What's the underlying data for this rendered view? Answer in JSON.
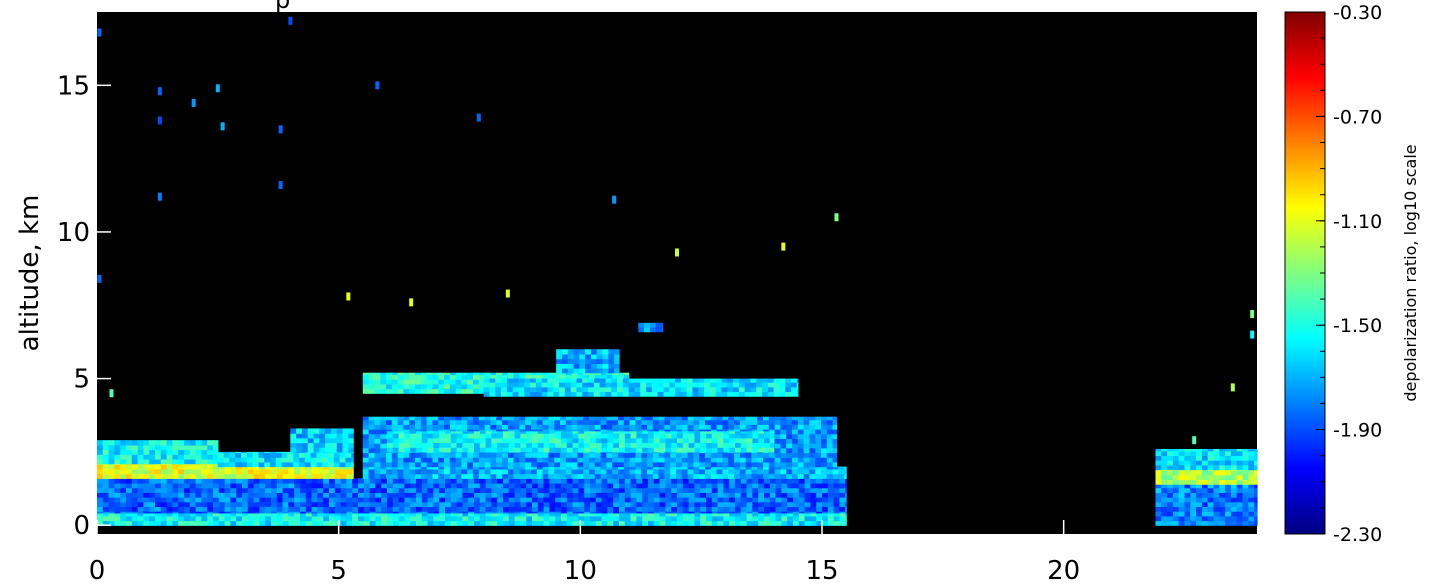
{
  "chart_data": {
    "type": "heatmap",
    "title": "p",
    "xlabel": "",
    "ylabel": "altitude, km",
    "xlim": [
      0,
      24
    ],
    "ylim": [
      -0.3,
      17.5
    ],
    "x_ticks": [
      "0",
      "5",
      "10",
      "15",
      "20"
    ],
    "y_ticks": [
      "0",
      "5",
      "10",
      "15"
    ],
    "background": "#000000",
    "colorbar": {
      "label": "depolarization ratio, log10 scale",
      "range": [
        -2.3,
        -0.3
      ],
      "ticks": [
        "-0.30",
        "-0.70",
        "-1.10",
        "-1.50",
        "-1.90",
        "-2.30"
      ],
      "colors": [
        "#000080",
        "#0000ff",
        "#0080ff",
        "#00ffff",
        "#80ff80",
        "#ffff00",
        "#ff8000",
        "#ff0000",
        "#800000"
      ]
    },
    "layers": [
      {
        "x0": 0.0,
        "x1": 15.5,
        "y0": 0.0,
        "y1": 1.6,
        "value": -1.85
      },
      {
        "x0": 0.0,
        "x1": 15.5,
        "y0": 0.0,
        "y1": 0.4,
        "value": -1.55
      },
      {
        "x0": 0.0,
        "x1": 5.3,
        "y0": 1.6,
        "y1": 2.1,
        "value": -1.1
      },
      {
        "x0": 5.5,
        "x1": 15.5,
        "y0": 1.6,
        "y1": 2.0,
        "value": -1.7
      },
      {
        "x0": 0.0,
        "x1": 2.5,
        "y0": 2.1,
        "y1": 2.9,
        "value": -1.55
      },
      {
        "x0": 2.5,
        "x1": 5.3,
        "y0": 2.0,
        "y1": 2.5,
        "value": -1.6
      },
      {
        "x0": 4.0,
        "x1": 5.3,
        "y0": 2.5,
        "y1": 3.3,
        "value": -1.65
      },
      {
        "x0": 5.5,
        "x1": 15.3,
        "y0": 2.0,
        "y1": 3.7,
        "value": -1.75
      },
      {
        "x0": 6.0,
        "x1": 14.0,
        "y0": 2.5,
        "y1": 3.2,
        "value": -1.55
      },
      {
        "x0": 5.5,
        "x1": 11.0,
        "y0": 4.5,
        "y1": 5.2,
        "value": -1.5
      },
      {
        "x0": 8.0,
        "x1": 14.5,
        "y0": 4.4,
        "y1": 5.0,
        "value": -1.6
      },
      {
        "x0": 9.5,
        "x1": 10.8,
        "y0": 5.2,
        "y1": 6.0,
        "value": -1.7
      },
      {
        "x0": 11.2,
        "x1": 11.7,
        "y0": 6.6,
        "y1": 6.9,
        "value": -1.75
      },
      {
        "x0": 21.9,
        "x1": 24.0,
        "y0": 0.0,
        "y1": 1.6,
        "value": -1.8
      },
      {
        "x0": 21.9,
        "x1": 24.0,
        "y0": 1.4,
        "y1": 1.9,
        "value": -1.2
      },
      {
        "x0": 21.9,
        "x1": 24.0,
        "y0": 1.9,
        "y1": 2.6,
        "value": -1.6
      }
    ],
    "sparse_points": [
      {
        "x": 0.05,
        "y": 16.8,
        "value": -1.85
      },
      {
        "x": 0.05,
        "y": 8.4,
        "value": -1.85
      },
      {
        "x": 1.3,
        "y": 13.8,
        "value": -1.9
      },
      {
        "x": 1.3,
        "y": 14.8,
        "value": -1.85
      },
      {
        "x": 1.3,
        "y": 11.2,
        "value": -1.8
      },
      {
        "x": 2.0,
        "y": 14.4,
        "value": -1.75
      },
      {
        "x": 2.6,
        "y": 13.6,
        "value": -1.7
      },
      {
        "x": 2.5,
        "y": 14.9,
        "value": -1.7
      },
      {
        "x": 3.8,
        "y": 13.5,
        "value": -1.85
      },
      {
        "x": 3.8,
        "y": 11.6,
        "value": -1.85
      },
      {
        "x": 4.0,
        "y": 17.2,
        "value": -1.9
      },
      {
        "x": 5.8,
        "y": 15.0,
        "value": -1.85
      },
      {
        "x": 5.2,
        "y": 7.8,
        "value": -1.1
      },
      {
        "x": 6.5,
        "y": 7.6,
        "value": -1.1
      },
      {
        "x": 7.9,
        "y": 13.9,
        "value": -1.85
      },
      {
        "x": 8.5,
        "y": 7.9,
        "value": -1.1
      },
      {
        "x": 10.7,
        "y": 11.1,
        "value": -1.75
      },
      {
        "x": 12.0,
        "y": 9.3,
        "value": -1.15
      },
      {
        "x": 14.2,
        "y": 9.5,
        "value": -1.1
      },
      {
        "x": 15.3,
        "y": 10.5,
        "value": -1.3
      },
      {
        "x": 0.3,
        "y": 4.5,
        "value": -1.4
      },
      {
        "x": 23.9,
        "y": 7.2,
        "value": -1.3
      },
      {
        "x": 23.9,
        "y": 6.5,
        "value": -1.55
      },
      {
        "x": 23.5,
        "y": 4.7,
        "value": -1.2
      },
      {
        "x": 22.7,
        "y": 2.9,
        "value": -1.4
      }
    ]
  }
}
